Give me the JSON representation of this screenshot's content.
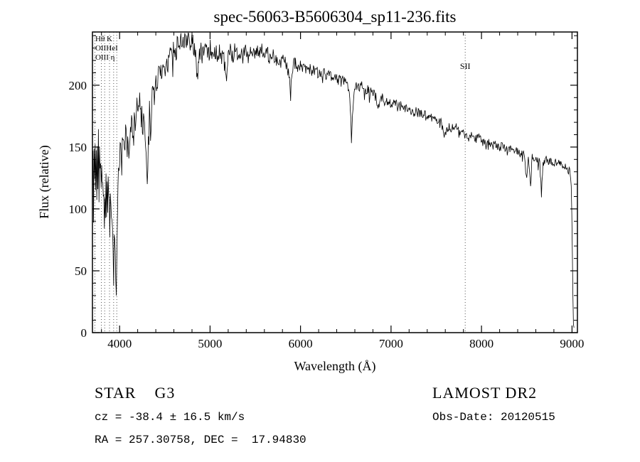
{
  "chart_data": {
    "type": "line",
    "title": "spec-56063-B5606304_sp11-236.fits",
    "xlabel": "Wavelength (Å)",
    "ylabel": "Flux (relative)",
    "xlim": [
      3700,
      9060
    ],
    "ylim": [
      0,
      243
    ],
    "x_ticks": [
      4000,
      5000,
      6000,
      7000,
      8000,
      9000
    ],
    "y_ticks": [
      0,
      50,
      100,
      150,
      200
    ],
    "x_minor_step": 200,
    "y_minor_step": 10,
    "grid": false,
    "line_color": "#000000",
    "marker_line_color": "#555555",
    "marker_lines": [
      3727,
      3798,
      3835,
      3889,
      3934,
      3969,
      7820
    ],
    "left_line_labels": [
      "Hθ K",
      "OIIHeI",
      "OIII η"
    ],
    "sii_label": {
      "text": "SII",
      "wavelength": 7820
    },
    "noise": {
      "base": 3,
      "blue_extra": 11,
      "decay_scale": 1400,
      "seed": 42,
      "sample_step": 6,
      "dip_prob": 0.05
    },
    "spectrum_anchors": [
      [
        3700,
        115
      ],
      [
        3706,
        148
      ],
      [
        3712,
        108
      ],
      [
        3718,
        140
      ],
      [
        3724,
        118
      ],
      [
        3730,
        152
      ],
      [
        3736,
        122
      ],
      [
        3742,
        158
      ],
      [
        3748,
        112
      ],
      [
        3754,
        146
      ],
      [
        3760,
        126
      ],
      [
        3766,
        155
      ],
      [
        3772,
        118
      ],
      [
        3778,
        142
      ],
      [
        3784,
        122
      ],
      [
        3790,
        138
      ],
      [
        3796,
        108
      ],
      [
        3802,
        132
      ],
      [
        3808,
        118
      ],
      [
        3814,
        128
      ],
      [
        3820,
        98
      ],
      [
        3826,
        122
      ],
      [
        3832,
        88
      ],
      [
        3838,
        115
      ],
      [
        3844,
        102
      ],
      [
        3850,
        118
      ],
      [
        3856,
        95
      ],
      [
        3862,
        125
      ],
      [
        3868,
        105
      ],
      [
        3874,
        130
      ],
      [
        3880,
        112
      ],
      [
        3886,
        96
      ],
      [
        3892,
        88
      ],
      [
        3898,
        112
      ],
      [
        3904,
        120
      ],
      [
        3910,
        105
      ],
      [
        3916,
        95
      ],
      [
        3922,
        78
      ],
      [
        3928,
        62
      ],
      [
        3934,
        46
      ],
      [
        3940,
        70
      ],
      [
        3946,
        88
      ],
      [
        3952,
        75
      ],
      [
        3958,
        52
      ],
      [
        3964,
        46
      ],
      [
        3970,
        68
      ],
      [
        3976,
        92
      ],
      [
        3982,
        108
      ],
      [
        3988,
        122
      ],
      [
        3994,
        130
      ],
      [
        4000,
        136
      ],
      [
        4010,
        148
      ],
      [
        4025,
        142
      ],
      [
        4040,
        155
      ],
      [
        4055,
        148
      ],
      [
        4070,
        160
      ],
      [
        4085,
        152
      ],
      [
        4101,
        138
      ],
      [
        4115,
        162
      ],
      [
        4130,
        170
      ],
      [
        4145,
        165
      ],
      [
        4160,
        175
      ],
      [
        4175,
        168
      ],
      [
        4190,
        180
      ],
      [
        4205,
        174
      ],
      [
        4220,
        185
      ],
      [
        4235,
        178
      ],
      [
        4250,
        172
      ],
      [
        4265,
        168
      ],
      [
        4280,
        160
      ],
      [
        4295,
        140
      ],
      [
        4308,
        126
      ],
      [
        4320,
        168
      ],
      [
        4330,
        178
      ],
      [
        4341,
        152
      ],
      [
        4355,
        190
      ],
      [
        4370,
        198
      ],
      [
        4385,
        192
      ],
      [
        4400,
        205
      ],
      [
        4420,
        200
      ],
      [
        4440,
        212
      ],
      [
        4460,
        206
      ],
      [
        4480,
        218
      ],
      [
        4500,
        212
      ],
      [
        4520,
        222
      ],
      [
        4540,
        216
      ],
      [
        4560,
        226
      ],
      [
        4580,
        220
      ],
      [
        4600,
        230
      ],
      [
        4620,
        224
      ],
      [
        4640,
        234
      ],
      [
        4660,
        228
      ],
      [
        4680,
        236
      ],
      [
        4700,
        230
      ],
      [
        4720,
        240
      ],
      [
        4740,
        234
      ],
      [
        4760,
        241
      ],
      [
        4780,
        236
      ],
      [
        4800,
        239
      ],
      [
        4820,
        230
      ],
      [
        4840,
        226
      ],
      [
        4861,
        198
      ],
      [
        4880,
        226
      ],
      [
        4900,
        231
      ],
      [
        4920,
        226
      ],
      [
        4940,
        232
      ],
      [
        4960,
        228
      ],
      [
        4980,
        224
      ],
      [
        5000,
        230
      ],
      [
        5025,
        226
      ],
      [
        5050,
        229
      ],
      [
        5075,
        224
      ],
      [
        5100,
        227
      ],
      [
        5125,
        221
      ],
      [
        5150,
        224
      ],
      [
        5175,
        204
      ],
      [
        5200,
        222
      ],
      [
        5225,
        227
      ],
      [
        5250,
        223
      ],
      [
        5275,
        228
      ],
      [
        5300,
        224
      ],
      [
        5330,
        228
      ],
      [
        5360,
        223
      ],
      [
        5390,
        227
      ],
      [
        5420,
        222
      ],
      [
        5450,
        228
      ],
      [
        5480,
        224
      ],
      [
        5510,
        229
      ],
      [
        5540,
        225
      ],
      [
        5570,
        228
      ],
      [
        5600,
        224
      ],
      [
        5630,
        227
      ],
      [
        5660,
        222
      ],
      [
        5690,
        225
      ],
      [
        5720,
        220
      ],
      [
        5750,
        223
      ],
      [
        5780,
        218
      ],
      [
        5810,
        221
      ],
      [
        5840,
        216
      ],
      [
        5870,
        210
      ],
      [
        5890,
        192
      ],
      [
        5910,
        214
      ],
      [
        5940,
        218
      ],
      [
        5970,
        214
      ],
      [
        6000,
        217
      ],
      [
        6040,
        213
      ],
      [
        6080,
        216
      ],
      [
        6120,
        211
      ],
      [
        6160,
        213
      ],
      [
        6200,
        209
      ],
      [
        6240,
        211
      ],
      [
        6280,
        207
      ],
      [
        6320,
        209
      ],
      [
        6360,
        205
      ],
      [
        6400,
        207
      ],
      [
        6440,
        203
      ],
      [
        6480,
        204
      ],
      [
        6510,
        200
      ],
      [
        6540,
        196
      ],
      [
        6556,
        170
      ],
      [
        6563,
        148
      ],
      [
        6572,
        172
      ],
      [
        6590,
        198
      ],
      [
        6620,
        200
      ],
      [
        6650,
        197
      ],
      [
        6680,
        199
      ],
      [
        6710,
        195
      ],
      [
        6740,
        197
      ],
      [
        6770,
        193
      ],
      [
        6800,
        195
      ],
      [
        6830,
        191
      ],
      [
        6860,
        182
      ],
      [
        6880,
        188
      ],
      [
        6910,
        190
      ],
      [
        6940,
        186
      ],
      [
        6970,
        188
      ],
      [
        7000,
        184
      ],
      [
        7040,
        186
      ],
      [
        7080,
        182
      ],
      [
        7120,
        184
      ],
      [
        7160,
        180
      ],
      [
        7200,
        182
      ],
      [
        7240,
        178
      ],
      [
        7280,
        179
      ],
      [
        7320,
        176
      ],
      [
        7360,
        177
      ],
      [
        7400,
        174
      ],
      [
        7440,
        175
      ],
      [
        7480,
        172
      ],
      [
        7520,
        172
      ],
      [
        7560,
        169
      ],
      [
        7593,
        158
      ],
      [
        7610,
        162
      ],
      [
        7640,
        167
      ],
      [
        7680,
        165
      ],
      [
        7720,
        166
      ],
      [
        7760,
        163
      ],
      [
        7800,
        161
      ],
      [
        7840,
        159
      ],
      [
        7880,
        160
      ],
      [
        7920,
        157
      ],
      [
        7960,
        158
      ],
      [
        8000,
        155
      ],
      [
        8040,
        153
      ],
      [
        8080,
        154
      ],
      [
        8120,
        151
      ],
      [
        8160,
        152
      ],
      [
        8200,
        150
      ],
      [
        8240,
        151
      ],
      [
        8280,
        148
      ],
      [
        8320,
        149
      ],
      [
        8360,
        147
      ],
      [
        8400,
        146
      ],
      [
        8440,
        145
      ],
      [
        8470,
        144
      ],
      [
        8498,
        122
      ],
      [
        8515,
        143
      ],
      [
        8542,
        118
      ],
      [
        8560,
        142
      ],
      [
        8590,
        141
      ],
      [
        8620,
        140
      ],
      [
        8645,
        139
      ],
      [
        8662,
        112
      ],
      [
        8680,
        139
      ],
      [
        8710,
        140
      ],
      [
        8740,
        138
      ],
      [
        8770,
        139
      ],
      [
        8800,
        137
      ],
      [
        8830,
        138
      ],
      [
        8860,
        136
      ],
      [
        8890,
        135
      ],
      [
        8920,
        134
      ],
      [
        8950,
        133
      ],
      [
        8975,
        131
      ],
      [
        8990,
        125
      ],
      [
        9000,
        90
      ],
      [
        9008,
        40
      ],
      [
        9016,
        8
      ],
      [
        9025,
        2
      ]
    ]
  },
  "footer": {
    "left_title": "STAR    G3",
    "right_title": "LAMOST DR2",
    "left_line2": "cz = -38.4 ± 16.5 km/s",
    "right_line2": "Obs-Date: 20120515",
    "left_line3": "RA = 257.30758, DEC =  17.94830"
  }
}
